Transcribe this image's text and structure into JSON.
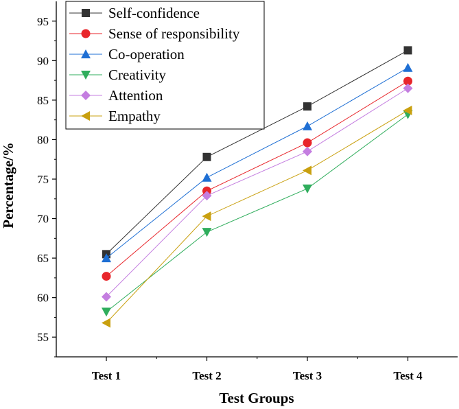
{
  "chart_data": {
    "type": "line",
    "title": "",
    "xlabel": "Test Groups",
    "ylabel": "Percentage/%",
    "categories": [
      "Test 1",
      "Test 2",
      "Test 3",
      "Test 4"
    ],
    "ylim": [
      52.5,
      97.5
    ],
    "yticks": [
      55,
      60,
      65,
      70,
      75,
      80,
      85,
      90,
      95
    ],
    "legend_position": "top-left",
    "series": [
      {
        "name": "Self-confidence",
        "values": [
          65.5,
          77.8,
          84.2,
          91.3
        ],
        "color": "#333333",
        "marker": "square"
      },
      {
        "name": "Sense of responsibility",
        "values": [
          62.7,
          73.5,
          79.6,
          87.4
        ],
        "color": "#e8262b",
        "marker": "circle"
      },
      {
        "name": "Co-operation",
        "values": [
          65.0,
          75.2,
          81.7,
          89.1
        ],
        "color": "#1e6fd4",
        "marker": "triangle-up"
      },
      {
        "name": "Creativity",
        "values": [
          58.2,
          68.3,
          73.8,
          83.2
        ],
        "color": "#2fad5c",
        "marker": "triangle-down"
      },
      {
        "name": "Attention",
        "values": [
          60.1,
          72.9,
          78.5,
          86.5
        ],
        "color": "#c47ee0",
        "marker": "diamond"
      },
      {
        "name": "Empathy",
        "values": [
          56.8,
          70.3,
          76.1,
          83.7
        ],
        "color": "#c9a00f",
        "marker": "triangle-left"
      }
    ]
  }
}
